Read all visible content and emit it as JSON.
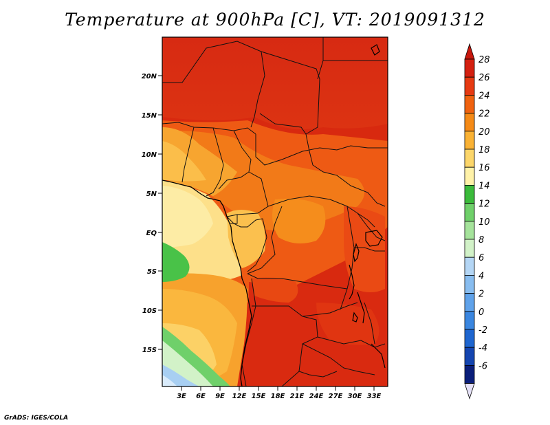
{
  "title": "Temperature at 900hPa [C], VT: 2019091312",
  "credit": "GrADS: IGES/COLA",
  "map": {
    "lat_labels": [
      "20N",
      "15N",
      "10N",
      "5N",
      "EQ",
      "5S",
      "10S",
      "15S"
    ],
    "lon_labels": [
      "3E",
      "6E",
      "9E",
      "12E",
      "15E",
      "18E",
      "21E",
      "24E",
      "27E",
      "30E",
      "33E"
    ],
    "variable": "Temperature",
    "level": "900hPa",
    "units": "C",
    "valid_time": "2019091312"
  },
  "colorbar": {
    "labels": [
      "28",
      "26",
      "24",
      "22",
      "20",
      "18",
      "16",
      "14",
      "12",
      "10",
      "8",
      "6",
      "4",
      "2",
      "0",
      "-2",
      "-4",
      "-6"
    ],
    "colors": [
      "#d42010",
      "#e63a12",
      "#f0620f",
      "#f58a16",
      "#fab234",
      "#fcd66a",
      "#fff2a8",
      "#3bbb3b",
      "#6fd06a",
      "#a5e39b",
      "#d2f2c8",
      "#b4d6f5",
      "#88bdf0",
      "#5fa2ea",
      "#3a86e0",
      "#1e66d0",
      "#1445b0",
      "#0a1e7a"
    ],
    "top_color": "#c8170d",
    "bottom_color": "#e4e0f6"
  }
}
